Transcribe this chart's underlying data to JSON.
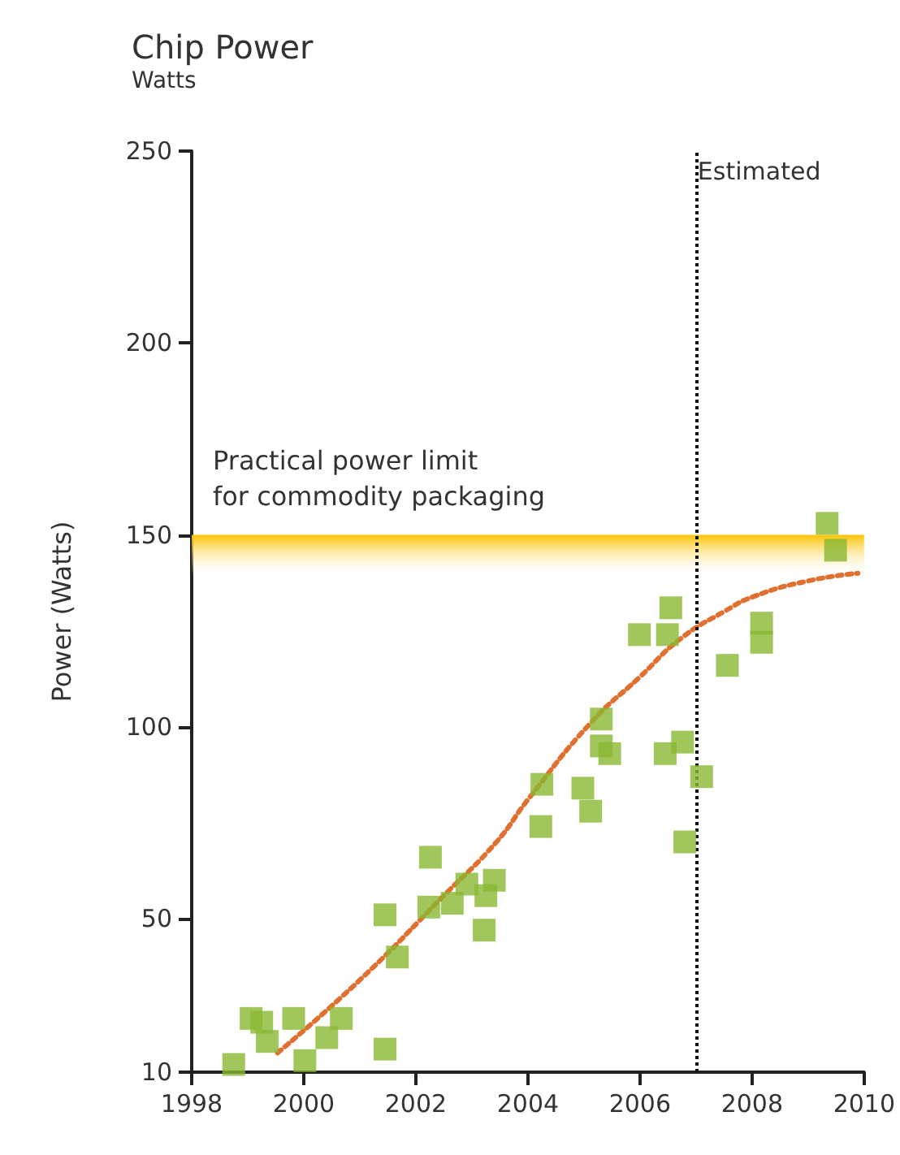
{
  "chart_data": {
    "type": "scatter",
    "title": "Chip Power",
    "subtitle": "Watts",
    "ylabel": "Power (Watts)",
    "xlim": [
      1998,
      2010
    ],
    "xticks": [
      1998,
      2000,
      2002,
      2004,
      2006,
      2008,
      2010
    ],
    "ylim": [
      10,
      250
    ],
    "yticks": [
      10,
      50,
      100,
      150,
      200,
      250
    ],
    "grid": false,
    "marker": "square",
    "series": [
      {
        "color": "#8ab832",
        "x": [
          1998.75,
          1999.06,
          1999.25,
          1999.35,
          1999.82,
          2000.02,
          2000.41,
          2000.67,
          2001.45,
          2001.45,
          2001.67,
          2002.26,
          2002.23,
          2002.65,
          2002.91,
          2003.25,
          2003.4,
          2003.22,
          2004.23,
          2004.25,
          2004.98,
          2005.12,
          2005.2,
          2005.31,
          2005.31,
          2005.46,
          2006.45,
          2005.99,
          2006.49,
          2006.55,
          2006.76,
          2006.8,
          2007.1,
          2007.56,
          2008.17,
          2008.17,
          2009.34,
          2009.49
        ],
        "values": [
          12,
          24,
          23,
          18,
          24,
          13,
          19,
          24,
          16,
          51,
          40,
          66,
          53,
          54,
          59,
          56,
          60,
          47,
          74,
          85,
          84,
          78,
          null,
          102,
          95,
          93,
          93,
          124,
          124,
          131,
          96,
          70,
          87,
          116,
          127,
          122,
          153,
          146
        ]
      },
      {
        "type": "line",
        "color": "#e07030",
        "line_style": "dotted",
        "marker": "none",
        "x": [
          1999.53,
          2001,
          2002.5,
          2003.44,
          2004,
          2005.12,
          2006,
          2006.73,
          2007.5,
          2008.04,
          2009,
          2009.89
        ],
        "values": [
          15,
          34,
          56,
          70,
          81,
          101,
          113,
          123,
          130,
          134,
          138,
          140
        ]
      }
    ],
    "bands": [
      {
        "axis": "y",
        "from": 139,
        "to": 150,
        "color": "#fcc200",
        "label": "Practical power limit\nfor commodity packaging"
      }
    ],
    "ref_lines": [
      {
        "axis": "x",
        "value": 2007,
        "label": "Estimated",
        "color": "#111111",
        "line_style": "dotted"
      }
    ]
  }
}
